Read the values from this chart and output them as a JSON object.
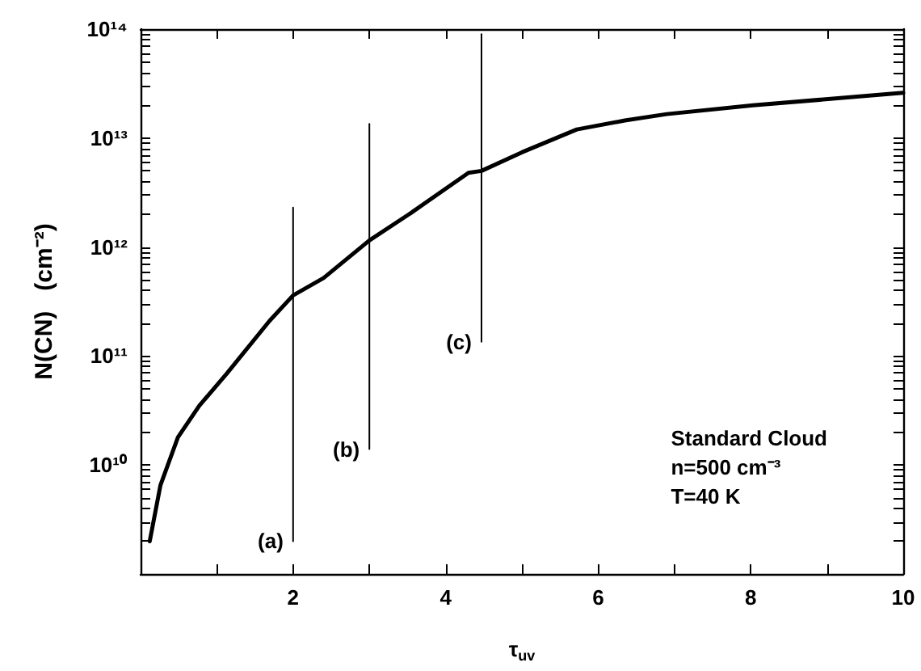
{
  "chart_data": {
    "type": "line",
    "xlabel": "τ$_{uv}$",
    "ylabel": "N(CN)   (cm⁻²)",
    "log": "y",
    "grid": false,
    "legend": false,
    "marker": "none",
    "line_style": "solid",
    "xlim": [
      0,
      10
    ],
    "xticks": [
      {
        "value": 1,
        "label": null
      },
      2,
      {
        "value": 3,
        "label": null
      },
      4,
      {
        "value": 5,
        "label": null
      },
      6,
      {
        "value": 7,
        "label": null
      },
      8,
      {
        "value": 9,
        "label": null
      },
      10
    ],
    "ylim": [
      1000000000.0,
      100000000000000.0
    ],
    "yticks": [
      {
        "value": 2000000000.0,
        "label": null
      },
      {
        "value": 3000000000.0,
        "label": null
      },
      {
        "value": 4000000000.0,
        "label": null
      },
      {
        "value": 5000000000.0,
        "label": null
      },
      {
        "value": 6000000000.0,
        "label": null
      },
      {
        "value": 7000000000.0,
        "label": null
      },
      {
        "value": 8000000000.0,
        "label": null
      },
      {
        "value": 9000000000.0,
        "label": null
      },
      {
        "value": 10000000000.0,
        "label": "10¹⁰"
      },
      {
        "value": 20000000000.0,
        "label": null
      },
      {
        "value": 30000000000.0,
        "label": null
      },
      {
        "value": 40000000000.0,
        "label": null
      },
      {
        "value": 50000000000.0,
        "label": null
      },
      {
        "value": 60000000000.0,
        "label": null
      },
      {
        "value": 70000000000.0,
        "label": null
      },
      {
        "value": 80000000000.0,
        "label": null
      },
      {
        "value": 90000000000.0,
        "label": null
      },
      {
        "value": 100000000000.0,
        "label": "10¹¹"
      },
      {
        "value": 200000000000.0,
        "label": null
      },
      {
        "value": 300000000000.0,
        "label": null
      },
      {
        "value": 400000000000.0,
        "label": null
      },
      {
        "value": 500000000000.0,
        "label": null
      },
      {
        "value": 600000000000.0,
        "label": null
      },
      {
        "value": 700000000000.0,
        "label": null
      },
      {
        "value": 800000000000.0,
        "label": null
      },
      {
        "value": 900000000000.0,
        "label": null
      },
      {
        "value": 1000000000000.0,
        "label": "10¹²"
      },
      {
        "value": 2000000000000.0,
        "label": null
      },
      {
        "value": 3000000000000.0,
        "label": null
      },
      {
        "value": 4000000000000.0,
        "label": null
      },
      {
        "value": 5000000000000.0,
        "label": null
      },
      {
        "value": 6000000000000.0,
        "label": null
      },
      {
        "value": 7000000000000.0,
        "label": null
      },
      {
        "value": 8000000000000.0,
        "label": null
      },
      {
        "value": 9000000000000.0,
        "label": null
      },
      {
        "value": 10000000000000.0,
        "label": "10¹³"
      },
      {
        "value": 20000000000000.0,
        "label": null
      },
      {
        "value": 30000000000000.0,
        "label": null
      },
      {
        "value": 40000000000000.0,
        "label": null
      },
      {
        "value": 50000000000000.0,
        "label": null
      },
      {
        "value": 60000000000000.0,
        "label": null
      },
      {
        "value": 70000000000000.0,
        "label": null
      },
      {
        "value": 80000000000000.0,
        "label": null
      },
      {
        "value": 90000000000000.0,
        "label": null
      },
      {
        "value": 100000000000000.0,
        "label": "10¹⁴"
      }
    ],
    "series": [
      {
        "color": "#000000",
        "x": [
          0.12,
          0.26,
          0.49,
          0.77,
          1.13,
          1.69,
          2.0,
          2.4,
          3.0,
          3.52,
          4.3,
          4.47,
          5.0,
          5.72,
          6.35,
          6.9,
          8.03,
          10
        ],
        "values": [
          2000000000.0,
          6500000000.0,
          18000000000.0,
          35000000000.0,
          69000000000.0,
          210000000000.0,
          360000000000.0,
          520000000000.0,
          1150000000000.0,
          2000000000000.0,
          4800000000000.0,
          5000000000000.0,
          7400000000000.0,
          12000000000000.0,
          14500000000000.0,
          16600000000000.0,
          20000000000000.0,
          26000000000000.0
        ]
      },
      {
        "name": "(a)",
        "color": "#000000",
        "x": [
          2,
          2
        ],
        "values": [
          2000000000.0,
          2300000000000.0
        ]
      },
      {
        "name": "(b)",
        "color": "#000000",
        "x": [
          3,
          3
        ],
        "values": [
          14000000000.0,
          13500000000000.0
        ]
      },
      {
        "name": "(c)",
        "color": "#000000",
        "x": [
          4.47,
          4.47
        ],
        "values": [
          135000000000.0,
          90000000000000.0
        ]
      }
    ],
    "annotations": [
      "Standard Cloud\nn=500 cm⁻³\nT=40 K"
    ]
  }
}
